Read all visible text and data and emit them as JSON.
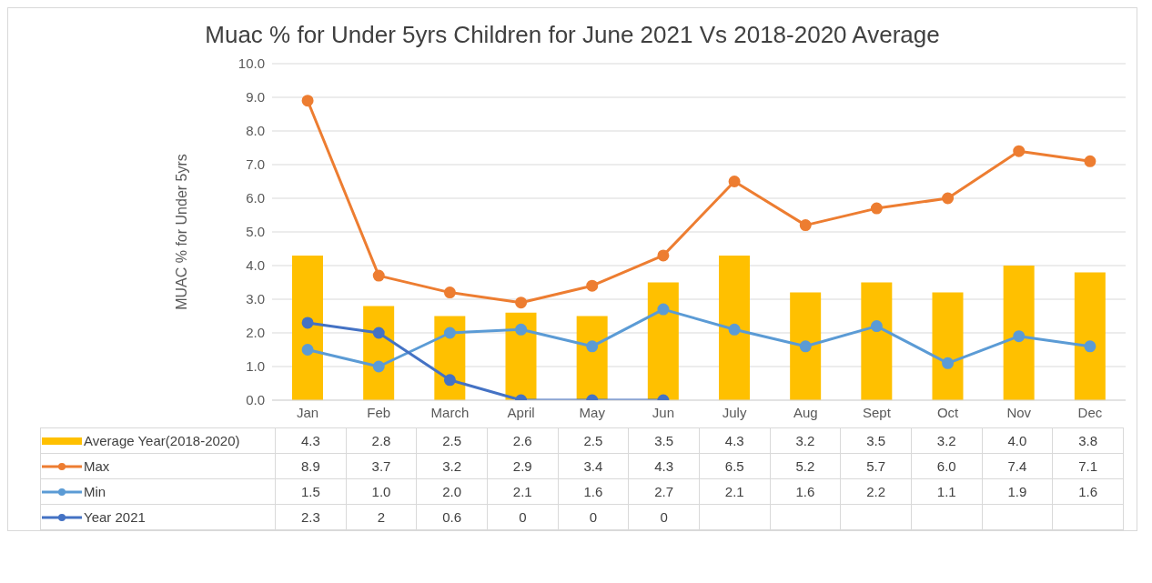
{
  "chart_data": {
    "type": "bar",
    "title": "Muac % for Under 5yrs Children for June 2021 Vs 2018-2020 Average",
    "ylabel": "MUAC % for Under 5yrs",
    "categories": [
      "Jan",
      "Feb",
      "March",
      "April",
      "May",
      "Jun",
      "July",
      "Aug",
      "Sept",
      "Oct",
      "Nov",
      "Dec"
    ],
    "series": [
      {
        "name": "Average Year(2018-2020)",
        "color": "#ffc000",
        "values": [
          4.3,
          2.8,
          2.5,
          2.6,
          2.5,
          3.5,
          4.3,
          3.2,
          3.5,
          3.2,
          4.0,
          3.8
        ],
        "value_labels": [
          "4.3",
          "2.8",
          "2.5",
          "2.6",
          "2.5",
          "3.5",
          "4.3",
          "3.2",
          "3.5",
          "3.2",
          "4.0",
          "3.8"
        ]
      },
      {
        "name": "Max",
        "type": "line",
        "color": "#ed7d31",
        "values": [
          8.9,
          3.7,
          3.2,
          2.9,
          3.4,
          4.3,
          6.5,
          5.2,
          5.7,
          6.0,
          7.4,
          7.1
        ],
        "value_labels": [
          "8.9",
          "3.7",
          "3.2",
          "2.9",
          "3.4",
          "4.3",
          "6.5",
          "5.2",
          "5.7",
          "6.0",
          "7.4",
          "7.1"
        ]
      },
      {
        "name": "Min",
        "type": "line",
        "color": "#5b9bd5",
        "values": [
          1.5,
          1.0,
          2.0,
          2.1,
          1.6,
          2.7,
          2.1,
          1.6,
          2.2,
          1.1,
          1.9,
          1.6
        ],
        "value_labels": [
          "1.5",
          "1.0",
          "2.0",
          "2.1",
          "1.6",
          "2.7",
          "2.1",
          "1.6",
          "2.2",
          "1.1",
          "1.9",
          "1.6"
        ]
      },
      {
        "name": "Year 2021",
        "type": "line",
        "color": "#4472c4",
        "values": [
          2.3,
          2,
          0.6,
          0,
          0,
          0,
          null,
          null,
          null,
          null,
          null,
          null
        ],
        "value_labels": [
          "2.3",
          "2",
          "0.6",
          "0",
          "0",
          "0",
          null,
          null,
          null,
          null,
          null,
          null
        ]
      }
    ],
    "ylim": [
      0,
      10
    ],
    "yticks": [
      {
        "value": 0,
        "label": "0.0"
      },
      {
        "value": 1,
        "label": "1.0"
      },
      {
        "value": 2,
        "label": "2.0"
      },
      {
        "value": 3,
        "label": "3.0"
      },
      {
        "value": 4,
        "label": "4.0"
      },
      {
        "value": 5,
        "label": "5.0"
      },
      {
        "value": 6,
        "label": "6.0"
      },
      {
        "value": 7,
        "label": "7.0"
      },
      {
        "value": 8,
        "label": "8.0"
      },
      {
        "value": 9,
        "label": "9.0"
      },
      {
        "value": 10,
        "label": "10.0"
      }
    ],
    "grid": "y",
    "legend": "bottom",
    "marker": "circle"
  }
}
